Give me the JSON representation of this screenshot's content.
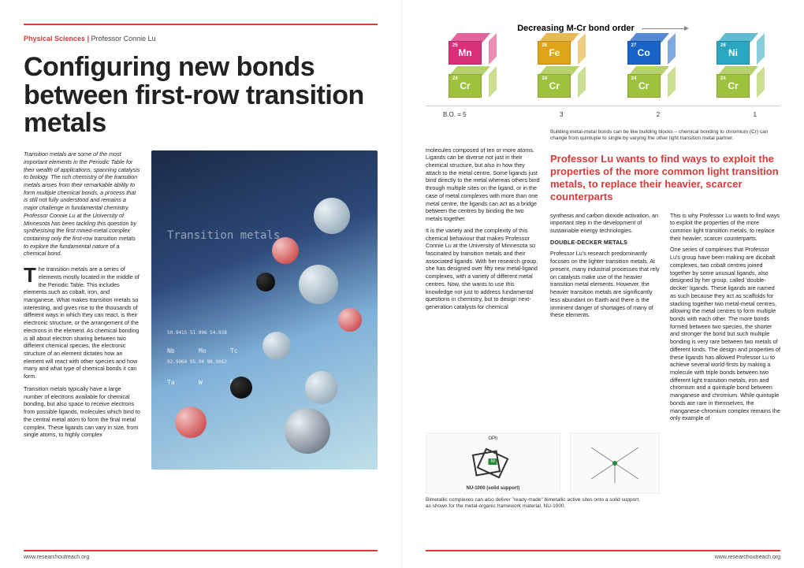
{
  "header": {
    "category": "Physical Sciences",
    "separator": " | ",
    "author": "Professor Connie Lu",
    "title": "Configuring new bonds between first-row transition metals"
  },
  "intro": "Transition metals are some of the most important elements in the Periodic Table for their wealth of applications, spanning catalysis to biology. The rich chemistry of the transition metals arises from their remarkable ability to form multiple chemical bonds, a process that is still not fully understood and remains a major challenge in fundamental chemistry. Professor Connie Lu at the University of Minnesota has been tackling this question by synthesising the first mixed-metal complex containing only the first-row transition metals to explore the fundamental nature of a chemical bond.",
  "body_left": {
    "p1": "The transition metals are a series of elements mostly located in the middle of the Periodic Table. This includes elements such as cobalt, iron, and manganese. What makes transition metals so interesting, and gives rise to the thousands of different ways in which they can react, is their electronic structure, or the arrangement of the electrons in the element. As chemical bonding is all about electron sharing between two different chemical species, the electronic structure of an element dictates how an element will react with other species and how many and what type of chemical bonds it can form.",
    "p2": "Transition metals typically have a large number of electrons available for chemical bonding, but also space to receive electrons from possible ligands, molecules which bind to the central metal atom to form the final metal complex. These ligands can vary in size, from single atoms, to highly complex"
  },
  "chart": {
    "title": "Decreasing M-Cr bond order",
    "top_row": [
      {
        "num": "25",
        "sym": "Mn",
        "color": "#d83078"
      },
      {
        "num": "26",
        "sym": "Fe",
        "color": "#e0a418"
      },
      {
        "num": "27",
        "sym": "Co",
        "color": "#1a63c6"
      },
      {
        "num": "28",
        "sym": "Ni",
        "color": "#2aa6c2"
      }
    ],
    "bottom_row": [
      {
        "num": "24",
        "sym": "Cr",
        "color": "#9fc23c"
      },
      {
        "num": "24",
        "sym": "Cr",
        "color": "#9fc23c"
      },
      {
        "num": "24",
        "sym": "Cr",
        "color": "#9fc23c"
      },
      {
        "num": "24",
        "sym": "Cr",
        "color": "#9fc23c"
      }
    ],
    "bo_label": "B.O. =",
    "bo_values": [
      "5",
      "3",
      "2",
      "1"
    ]
  },
  "caption1": "Building metal-metal bonds can be like building blocks – chemical bonding to chromium (Cr) can change from quintuple to single by varying the other light transition metal partner.",
  "pullquote": "Professor Lu wants to find ways to exploit the properties of the more common light transition metals, to replace their heavier, scarcer counterparts",
  "right_cols": {
    "c1": {
      "p1": "molecules composed of ten or more atoms. Ligands can be diverse not just in their chemical structure, but also in how they attach to the metal centre. Some ligands just bind directly to the metal whereas others bind through multiple sites on the ligand, or in the case of metal complexes with more than one metal centre, the ligands can act as a bridge between the centres by binding the two metals together.",
      "p2": "It is the variety and the complexity of this chemical behaviour that makes Professor Connie Lu at the University of Minnesota so fascinated by transition metals and their associated ligands. With her research group, she has designed over fifty new metal-ligand complexes, with a variety of different metal centres. Now, she wants to use this knowledge not just to address fundamental questions in chemistry, but to design next-generation catalysts for chemical"
    },
    "c2": {
      "p1": "synthesis and carbon dioxide activation, an important step in the development of sustainable energy technologies.",
      "h": "DOUBLE-DECKER METALS",
      "p2": "Professor Lu's research predominantly focuses on the lighter transition metals. At present, many industrial processes that rely on catalysts make use of the heavier transition metal elements. However, the heavier transition metals are significantly less abundant on Earth and there is the imminent danger of shortages of many of these elements."
    },
    "c3": {
      "p1": "This is why Professor Lu wants to find ways to exploit the properties of the more common light transition metals, to replace their heavier, scarcer counterparts.",
      "p2": "One series of complexes that Professor Lu's group have been making are dicobalt complexes, two cobalt centres joined together by some unusual ligands, also designed by her group, called 'double-decker' ligands. These ligands are named as such because they act as scaffolds for stacking together two metal-metal centres, allowing the metal centres to form multiple bonds with each other. The more bonds formed between two species, the shorter and stronger the bond but such multiple bonding is very rare between two metals of different kinds. The design and properties of these ligands has allowed Professor Lu to achieve several world-firsts by making a molecule with triple bonds between two different light transition metals, iron and chromium and a quintuple bond between manganese and chromium. While quintuple bonds are rare in themselves, the manganese-chromium complex remains the only example of"
    }
  },
  "fig_labels": {
    "label1": "OPh",
    "label2": "M",
    "label3": "NU-1000 (solid support)"
  },
  "caption2": "Bimetallic complexes can also deliver \"ready-made\" bimetallic active sites onto a solid support, as shown for the metal-organic framework material, NU-1000.",
  "footer_url": "www.researchoutreach.org"
}
